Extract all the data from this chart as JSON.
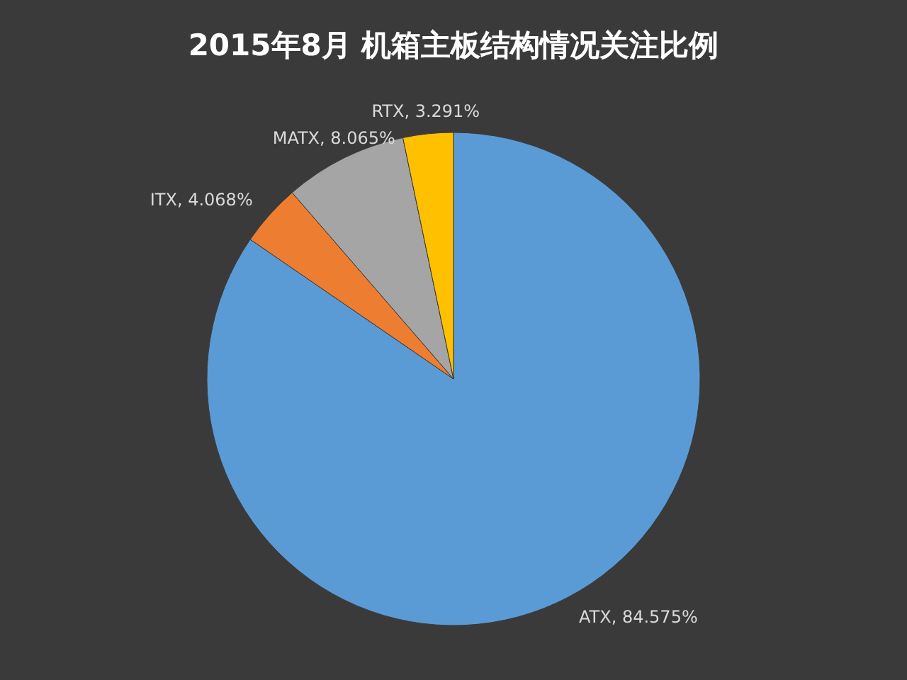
{
  "chart_data": {
    "type": "pie",
    "title": "2015年8月 机箱主板结构情况关注比例",
    "categories": [
      "ATX",
      "ITX",
      "MATX",
      "RTX"
    ],
    "values": [
      84.575,
      4.068,
      8.065,
      3.291
    ],
    "value_labels": [
      "84.575%",
      "4.068%",
      "8.065%",
      "3.291%"
    ],
    "colors": [
      "#5b9bd5",
      "#ed7d31",
      "#a5a5a5",
      "#ffc000"
    ]
  }
}
